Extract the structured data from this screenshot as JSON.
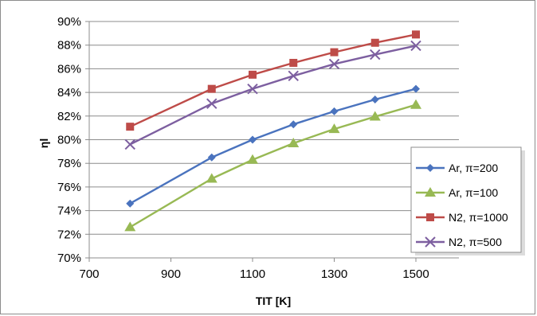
{
  "chart_data": {
    "type": "line",
    "xlabel": "TIT [K]",
    "ylabel": "ηl",
    "xlim": [
      700,
      1500
    ],
    "ylim": [
      70,
      90
    ],
    "x_ticks": [
      "700",
      "900",
      "1100",
      "1300",
      "1500"
    ],
    "y_ticks": [
      "70%",
      "72%",
      "74%",
      "76%",
      "78%",
      "80%",
      "82%",
      "84%",
      "86%",
      "88%",
      "90%"
    ],
    "grid": "horizontal",
    "legend_position": "right",
    "x": [
      800,
      1000,
      1100,
      1200,
      1300,
      1400,
      1500
    ],
    "series": [
      {
        "name": "Ar, π=200",
        "values": [
          74.6,
          78.5,
          80.0,
          81.3,
          82.4,
          83.4,
          84.3
        ],
        "color": "#4a73be",
        "marker": "diamond"
      },
      {
        "name": "Ar, π=100",
        "values": [
          72.6,
          76.7,
          78.3,
          79.7,
          80.9,
          81.95,
          82.95
        ],
        "color": "#98b954",
        "marker": "triangle"
      },
      {
        "name": "N2, π=1000",
        "values": [
          81.1,
          84.3,
          85.5,
          86.5,
          87.4,
          88.2,
          88.9
        ],
        "color": "#be4b48",
        "marker": "square"
      },
      {
        "name": "N2, π=500",
        "values": [
          79.6,
          83.05,
          84.3,
          85.4,
          86.4,
          87.2,
          87.95
        ],
        "color": "#7d5fa0",
        "marker": "x"
      }
    ]
  }
}
